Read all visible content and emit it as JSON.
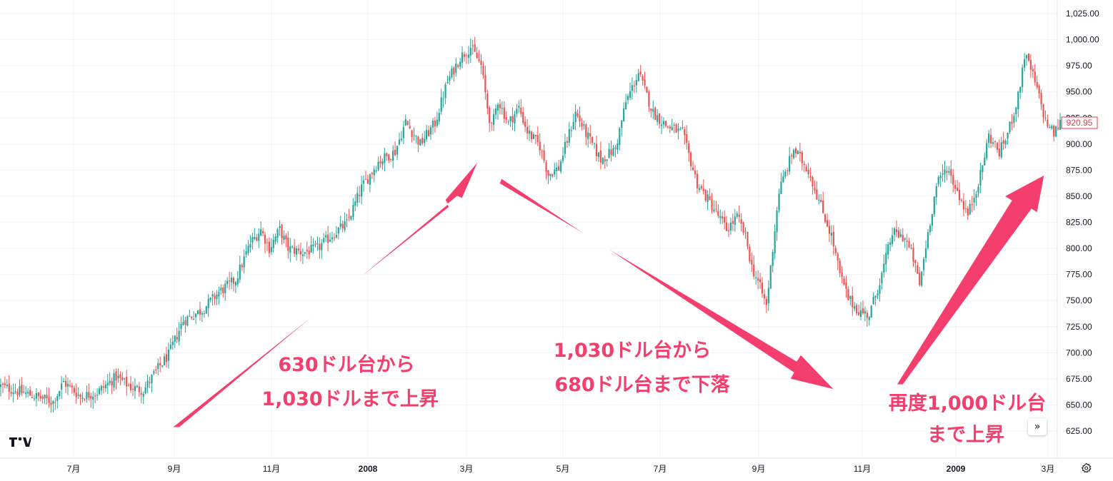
{
  "chart_data": {
    "type": "candlestick",
    "title": "",
    "ylim": [
      610,
      1032
    ],
    "y_ticks": [
      "1,025.00",
      "1,000.00",
      "975.00",
      "950.00",
      "925.00",
      "900.00",
      "875.00",
      "850.00",
      "825.00",
      "800.00",
      "775.00",
      "750.00",
      "725.00",
      "700.00",
      "675.00",
      "650.00",
      "625.00"
    ],
    "x_ticks": [
      {
        "label": "7月",
        "bold": false
      },
      {
        "label": "9月",
        "bold": false
      },
      {
        "label": "11月",
        "bold": false
      },
      {
        "label": "2008",
        "bold": true
      },
      {
        "label": "3月",
        "bold": false
      },
      {
        "label": "5月",
        "bold": false
      },
      {
        "label": "7月",
        "bold": false
      },
      {
        "label": "9月",
        "bold": false
      },
      {
        "label": "11月",
        "bold": false
      },
      {
        "label": "2009",
        "bold": true
      },
      {
        "label": "3月",
        "bold": false
      }
    ],
    "price_path": [
      [
        0,
        668
      ],
      [
        12,
        661
      ],
      [
        25,
        653
      ],
      [
        30,
        672
      ],
      [
        38,
        658
      ],
      [
        46,
        662
      ],
      [
        55,
        677
      ],
      [
        62,
        667
      ],
      [
        68,
        664
      ],
      [
        75,
        685
      ],
      [
        80,
        698
      ],
      [
        87,
        731
      ],
      [
        96,
        741
      ],
      [
        104,
        758
      ],
      [
        112,
        770
      ],
      [
        119,
        805
      ],
      [
        124,
        818
      ],
      [
        128,
        800
      ],
      [
        133,
        818
      ],
      [
        137,
        800
      ],
      [
        144,
        796
      ],
      [
        151,
        800
      ],
      [
        158,
        813
      ],
      [
        165,
        824
      ],
      [
        172,
        858
      ],
      [
        180,
        883
      ],
      [
        188,
        893
      ],
      [
        193,
        921
      ],
      [
        200,
        900
      ],
      [
        207,
        920
      ],
      [
        213,
        960
      ],
      [
        219,
        983
      ],
      [
        224,
        993
      ],
      [
        229,
        975
      ],
      [
        232,
        935
      ],
      [
        234,
        915
      ],
      [
        237,
        942
      ],
      [
        242,
        920
      ],
      [
        247,
        935
      ],
      [
        251,
        912
      ],
      [
        257,
        898
      ],
      [
        261,
        871
      ],
      [
        266,
        877
      ],
      [
        274,
        930
      ],
      [
        279,
        910
      ],
      [
        286,
        885
      ],
      [
        293,
        895
      ],
      [
        298,
        940
      ],
      [
        304,
        968
      ],
      [
        311,
        930
      ],
      [
        317,
        918
      ],
      [
        325,
        910
      ],
      [
        332,
        862
      ],
      [
        340,
        838
      ],
      [
        346,
        818
      ],
      [
        351,
        830
      ],
      [
        355,
        812
      ],
      [
        358,
        782
      ],
      [
        361,
        768
      ],
      [
        365,
        745
      ],
      [
        371,
        855
      ],
      [
        378,
        895
      ],
      [
        385,
        875
      ],
      [
        391,
        840
      ],
      [
        396,
        812
      ],
      [
        400,
        775
      ],
      [
        404,
        752
      ],
      [
        409,
        740
      ],
      [
        414,
        736
      ],
      [
        420,
        775
      ],
      [
        425,
        815
      ],
      [
        431,
        810
      ],
      [
        435,
        790
      ],
      [
        438,
        765
      ],
      [
        442,
        815
      ],
      [
        446,
        860
      ],
      [
        451,
        878
      ],
      [
        456,
        855
      ],
      [
        461,
        832
      ],
      [
        467,
        870
      ],
      [
        471,
        908
      ],
      [
        476,
        892
      ],
      [
        480,
        910
      ],
      [
        485,
        945
      ],
      [
        488,
        985
      ],
      [
        491,
        972
      ],
      [
        495,
        945
      ],
      [
        498,
        922
      ],
      [
        502,
        910
      ],
      [
        505,
        920
      ]
    ],
    "annotations": [
      {
        "lines": [
          "630ドル台から",
          "1,030ドルまで上昇"
        ]
      },
      {
        "lines": [
          "1,030ドル台から",
          "680ドル台まで下落"
        ]
      },
      {
        "lines": [
          "再度1,000ドル台",
          "まで上昇"
        ]
      }
    ],
    "last_price_label": "920.95",
    "colors": {
      "up": "#26a69a",
      "down": "#ef5350",
      "arrow": "#f43f6e",
      "grid": "#f0f3fa"
    },
    "grid": true
  },
  "controls": {
    "scroll_label": "»",
    "settings_icon": "gear-icon",
    "logo": "TV"
  }
}
